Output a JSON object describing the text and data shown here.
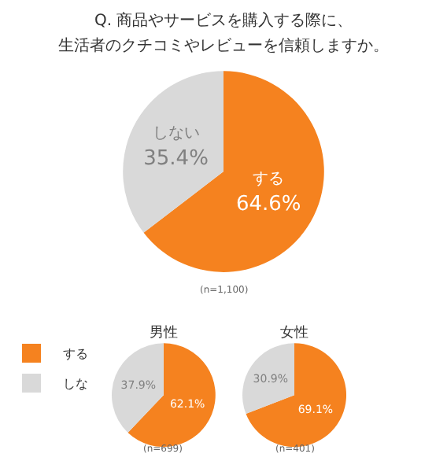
{
  "chart_data": [
    {
      "type": "pie",
      "title": "Q. 商品やサービスを購入する際に、",
      "subtitle": "生活者のクチコミやレビューを信頼しますか。",
      "categories": [
        "する",
        "しない"
      ],
      "values": [
        64.6,
        35.4
      ],
      "colors": [
        "#f5821f",
        "#d9d9d9"
      ],
      "value_labels": [
        "64.6%",
        "35.4%"
      ],
      "legend": false,
      "annotations": [
        "(n=1,100)"
      ]
    },
    {
      "type": "pie",
      "title": "男性",
      "categories": [
        "する",
        "しな"
      ],
      "values": [
        62.1,
        37.9
      ],
      "colors": [
        "#f5821f",
        "#d9d9d9"
      ],
      "value_labels": [
        "62.1%",
        "37.9%"
      ],
      "legend": "left",
      "annotations": [
        "(n=699)"
      ]
    },
    {
      "type": "pie",
      "title": "女性",
      "categories": [
        null,
        null
      ],
      "values": [
        69.1,
        30.9
      ],
      "colors": [
        "#f5821f",
        "#d9d9d9"
      ],
      "value_labels": [
        "69.1%",
        "30.9%"
      ],
      "annotations": [
        "(n=401)"
      ]
    }
  ]
}
